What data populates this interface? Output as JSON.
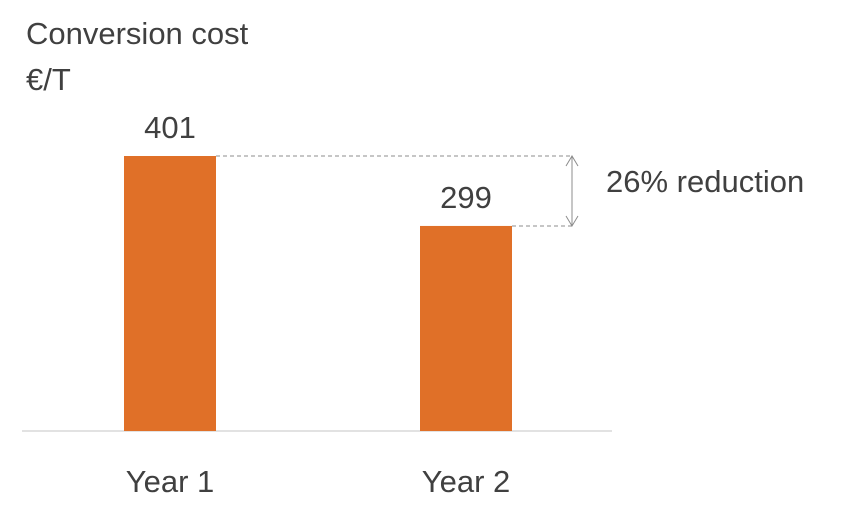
{
  "chart_data": {
    "type": "bar",
    "title": "Conversion cost",
    "unit": "€/T",
    "categories": [
      "Year 1",
      "Year 2"
    ],
    "values": [
      401,
      299
    ],
    "ylim": [
      0,
      401
    ],
    "grid": false,
    "annotation": "26% reduction",
    "bar_color": "#E07028"
  }
}
